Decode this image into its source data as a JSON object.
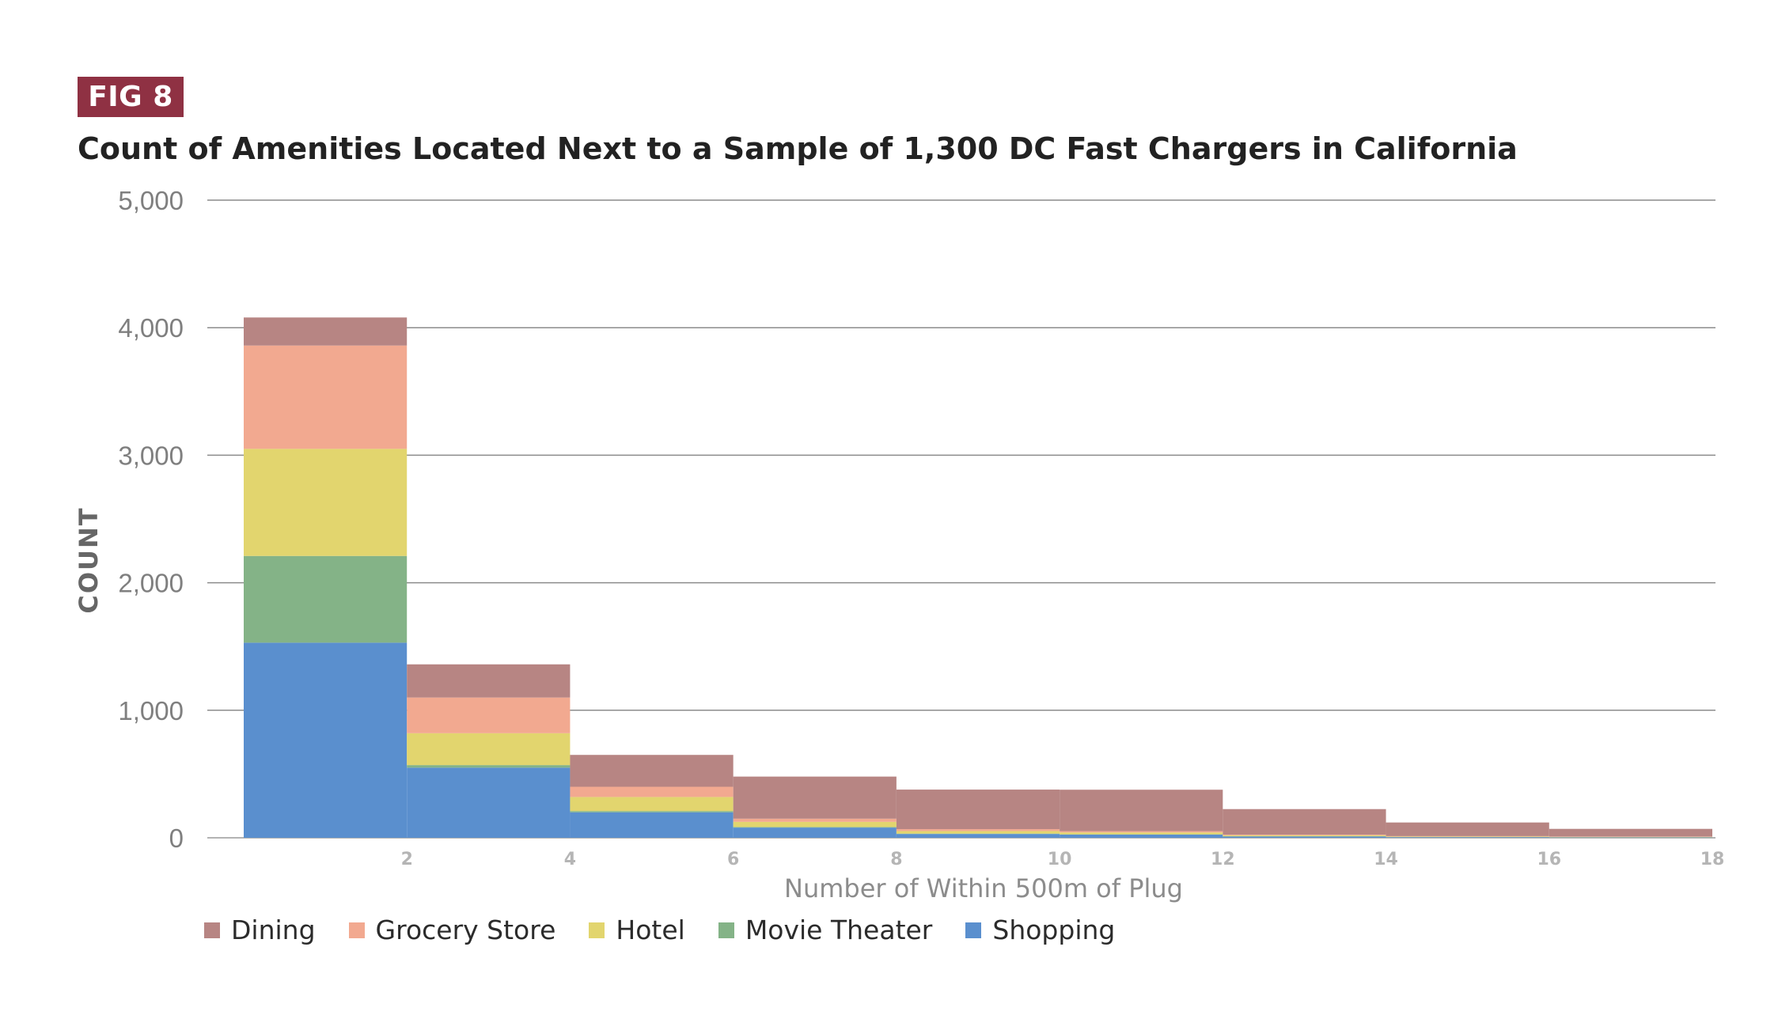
{
  "figure_label": "FIG 8",
  "chart_data": {
    "type": "bar",
    "stacked": true,
    "title": "Count of Amenities Located Next to a Sample of 1,300 DC Fast Chargers in California",
    "xlabel": "Number of Within 500m of Plug",
    "ylabel": "COUNT",
    "ylim": [
      0,
      5000
    ],
    "yticks": [
      0,
      1000,
      2000,
      3000,
      4000,
      5000
    ],
    "ytick_labels": [
      "0",
      "1,000",
      "2,000",
      "3,000",
      "4,000",
      "5,000"
    ],
    "xlim": [
      -0.8,
      18
    ],
    "xticks": [
      2,
      4,
      6,
      8,
      10,
      12,
      14,
      16,
      18
    ],
    "bin_edges": [
      0,
      2,
      4,
      6,
      8,
      10,
      12,
      14,
      16,
      18
    ],
    "grid": true,
    "legend_position": "bottom-left",
    "series": [
      {
        "name": "Shopping",
        "color": "#5a8fce",
        "values": [
          1530,
          550,
          200,
          80,
          30,
          25,
          10,
          5,
          3
        ]
      },
      {
        "name": "Movie Theater",
        "color": "#84b387",
        "values": [
          680,
          20,
          10,
          5,
          3,
          2,
          2,
          1,
          1
        ]
      },
      {
        "name": "Hotel",
        "color": "#e2d56e",
        "values": [
          840,
          250,
          110,
          40,
          20,
          15,
          8,
          4,
          3
        ]
      },
      {
        "name": "Grocery Store",
        "color": "#f2a990",
        "values": [
          810,
          280,
          80,
          25,
          15,
          10,
          5,
          3,
          3
        ]
      },
      {
        "name": "Dining",
        "color": "#b78583",
        "values": [
          220,
          260,
          250,
          330,
          310,
          325,
          200,
          107,
          60
        ]
      }
    ],
    "legend_order": [
      "Dining",
      "Grocery Store",
      "Hotel",
      "Movie Theater",
      "Shopping"
    ]
  }
}
